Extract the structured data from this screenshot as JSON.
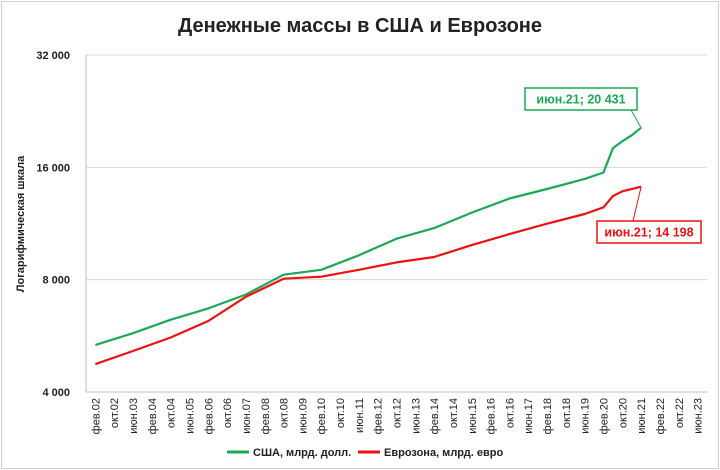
{
  "chart_data": {
    "type": "line",
    "title": "Денежные массы в США и Еврозоне",
    "ylabel": "Логарифмическая шкала",
    "xlabel": "",
    "y_scale": "log2",
    "ylim": [
      4000,
      32000
    ],
    "y_ticks": [
      4000,
      8000,
      16000,
      32000
    ],
    "y_tick_labels": [
      "4 000",
      "8 000",
      "16 000",
      "32 000"
    ],
    "x_tick_labels": [
      "фев.02",
      "окт.02",
      "июн.03",
      "фев.04",
      "окт.04",
      "июн.05",
      "фев.06",
      "окт.06",
      "июн.07",
      "фев.08",
      "окт.08",
      "июн.09",
      "фев.10",
      "окт.10",
      "июн.11",
      "фев.12",
      "окт.12",
      "июн.13",
      "фев.14",
      "окт.14",
      "июн.15",
      "фев.16",
      "окт.16",
      "июн.17",
      "фев.18",
      "окт.18",
      "июн.19",
      "фев.20",
      "окт.20",
      "июн.21",
      "фев.22",
      "окт.22",
      "июн.23"
    ],
    "grid": true,
    "legend_position": "bottom",
    "series": [
      {
        "name": "США, млрд. долл.",
        "color": "#1aaa55",
        "x": [
          "фев.02",
          "июн.03",
          "окт.04",
          "фев.06",
          "июн.07",
          "окт.08",
          "фев.10",
          "июн.11",
          "окт.12",
          "фев.14",
          "июн.15",
          "окт.16",
          "фев.18",
          "июн.19",
          "фев.20",
          "июн.20",
          "окт.20",
          "фев.21",
          "июн.21"
        ],
        "values": [
          5350,
          5750,
          6250,
          6700,
          7300,
          8250,
          8500,
          9300,
          10300,
          11000,
          12100,
          13200,
          14000,
          14900,
          15500,
          18000,
          18800,
          19500,
          20431
        ]
      },
      {
        "name": "Еврозона, млрд. евро",
        "color": "#ee1111",
        "x": [
          "фев.02",
          "июн.03",
          "окт.04",
          "фев.06",
          "июн.07",
          "окт.08",
          "фев.10",
          "июн.11",
          "окт.12",
          "фев.14",
          "июн.15",
          "окт.16",
          "фев.18",
          "июн.19",
          "фев.20",
          "июн.20",
          "окт.20",
          "фев.21",
          "июн.21"
        ],
        "values": [
          4750,
          5150,
          5600,
          6200,
          7200,
          8050,
          8150,
          8500,
          8900,
          9200,
          9900,
          10600,
          11300,
          12000,
          12500,
          13400,
          13800,
          14000,
          14198
        ]
      }
    ],
    "annotations": [
      {
        "series": 0,
        "text": "июн.21;  20 431",
        "color": "#1aaa55"
      },
      {
        "series": 1,
        "text": "июн.21;  14 198",
        "color": "#ee1111"
      }
    ]
  }
}
